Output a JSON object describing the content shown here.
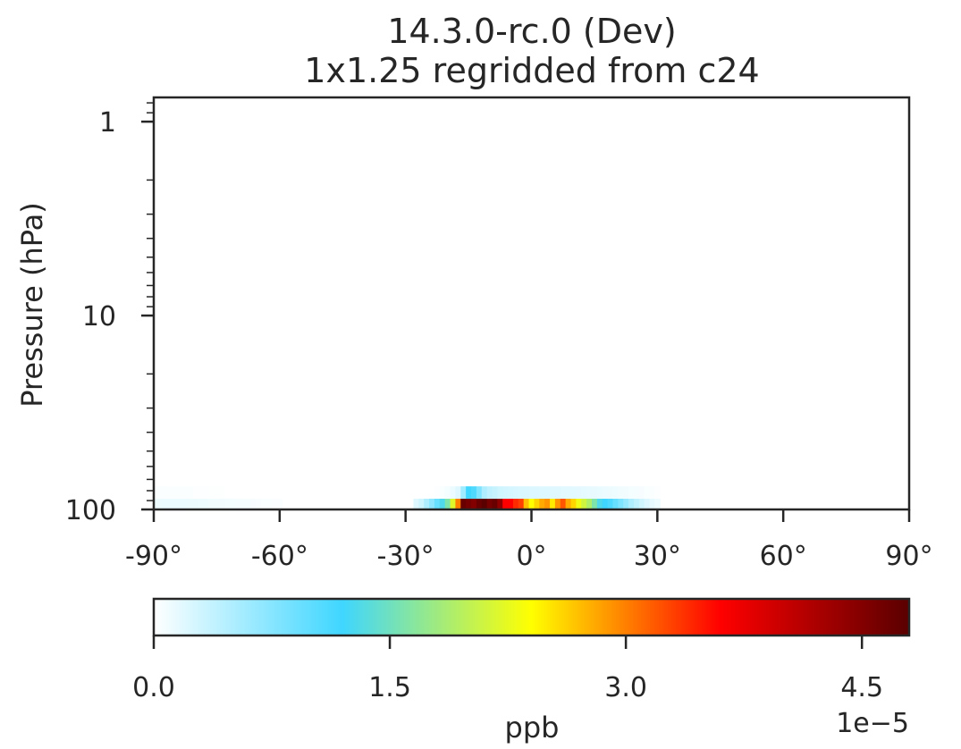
{
  "chart_data": {
    "type": "heatmap",
    "title": "14.3.0-rc.0 (Dev)",
    "subtitle": "1x1.25 regridded from c24",
    "xlabel": "",
    "ylabel": "Pressure (hPa)",
    "xlim": [
      -90,
      90
    ],
    "ylim": [
      100,
      0.75
    ],
    "yscale": "log",
    "x_ticks": [
      -90,
      -60,
      -30,
      0,
      30,
      60,
      90
    ],
    "x_tick_labels": [
      "-90°",
      "-60°",
      "-30°",
      "0°",
      "30°",
      "60°",
      "90°"
    ],
    "y_ticks": [
      1,
      10,
      100
    ],
    "y_tick_labels": [
      "1",
      "10",
      "100"
    ],
    "grid": false,
    "colormap": [
      "#ffffff",
      "#3fd6ff",
      "#ffff00",
      "#ff0000",
      "#5a0000"
    ],
    "colorbar": {
      "label": "ppb",
      "range": [
        0,
        4.8e-05
      ],
      "ticks": [
        0,
        1.5e-05,
        3e-05,
        4.5e-05
      ],
      "tick_labels": [
        "0.0",
        "1.5",
        "3.0",
        "4.5"
      ],
      "offset_text": "1e−5",
      "orientation": "horizontal",
      "placement": "bottom"
    },
    "levels": [
      {
        "p_top": 88,
        "p_bottom": 100,
        "lat": [
          -90,
          -88.75,
          -87.5,
          -86.25,
          -85,
          -83.75,
          -82.5,
          -81.25,
          -80,
          -78.75,
          -77.5,
          -76.25,
          -75,
          -73.75,
          -72.5,
          -71.25,
          -70,
          -68.75,
          -67.5,
          -66.25,
          -65,
          -63.75,
          -62.5,
          -61.25,
          -60
        ],
        "values": [
          1e-06,
          1.1e-06,
          1.2e-06,
          1.2e-06,
          1.2e-06,
          1.2e-06,
          1.2e-06,
          1.1e-06,
          1.1e-06,
          1e-06,
          1e-06,
          9e-07,
          8.5e-07,
          8e-07,
          7.5e-07,
          7e-07,
          6.5e-07,
          6e-07,
          5.5e-07,
          5e-07,
          4.5e-07,
          4e-07,
          3.5e-07,
          3e-07,
          2.5e-07
        ]
      },
      {
        "p_top": 88,
        "p_bottom": 100,
        "lat": [
          -27.5,
          -26.25,
          -25,
          -23.75,
          -22.5,
          -21.25,
          -20,
          -18.75,
          -17.5,
          -16.25,
          -15,
          -13.75,
          -12.5,
          -11.25,
          -10,
          -8.75,
          -7.5,
          -6.25,
          -5,
          -3.75,
          -2.5,
          -1.25,
          0,
          1.25,
          2.5,
          3.75,
          5,
          6.25,
          7.5,
          8.75,
          10,
          11.25,
          12.5,
          13.75,
          15,
          16.25,
          17.5,
          18.75,
          20,
          21.25,
          22.5,
          23.75,
          25,
          26.25,
          27.5,
          28.75,
          30
        ],
        "values": [
          2e-06,
          3e-06,
          5e-06,
          7e-06,
          9.5e-06,
          1.3e-05,
          1.6e-05,
          2.2e-05,
          3e-05,
          4.7e-05,
          4.6e-05,
          4.5e-05,
          4.7e-05,
          4.8e-05,
          4.6e-05,
          4.7e-05,
          4.4e-05,
          3.6e-05,
          3.6e-05,
          3.4e-05,
          3.3e-05,
          2.7e-05,
          2.4e-05,
          2.6e-05,
          2.8e-05,
          2.9e-05,
          2.5e-05,
          2.9e-05,
          3.2e-05,
          2.8e-05,
          2.6e-05,
          2.3e-05,
          2.1e-05,
          1.9e-05,
          1.6e-05,
          1.3e-05,
          1.2e-05,
          1.1e-05,
          9.5e-06,
          8e-06,
          6.5e-06,
          5e-06,
          4e-06,
          3e-06,
          2.2e-06,
          1.5e-06,
          1e-06
        ]
      },
      {
        "p_top": 76,
        "p_bottom": 88,
        "lat": [
          -90,
          -88.75,
          -87.5,
          -86.25,
          -85,
          -83.75,
          -82.5,
          -81.25,
          -80,
          -78.75,
          -77.5,
          -76.25,
          -75,
          -73.75
        ],
        "values": [
          3e-07,
          3e-07,
          3e-07,
          2.8e-07,
          2.6e-07,
          2.5e-07,
          2.3e-07,
          2.2e-07,
          2e-07,
          1.8e-07,
          1.6e-07,
          1.4e-07,
          1.2e-07,
          1e-07
        ]
      },
      {
        "p_top": 76,
        "p_bottom": 88,
        "lat": [
          -22.5,
          -21.25,
          -20,
          -18.75,
          -17.5,
          -16.25,
          -15,
          -13.75,
          -12.5,
          -11.25,
          -10,
          -8.75,
          -7.5,
          -6.25,
          -5,
          -3.75,
          -2.5,
          -1.25,
          0,
          1.25,
          2.5,
          3.75,
          5,
          6.25,
          7.5,
          8.75,
          10,
          11.25,
          12.5,
          13.75,
          15,
          16.25,
          17.5,
          18.75,
          20,
          21.25,
          22.5,
          23.75,
          25,
          26.25,
          27.5,
          28.75,
          30
        ],
        "values": [
          2e-07,
          4e-07,
          7e-07,
          1.2e-06,
          2e-06,
          6e-06,
          1.2e-05,
          1.1e-05,
          8e-06,
          5e-06,
          4e-06,
          3.5e-06,
          3e-06,
          2.8e-06,
          2.6e-06,
          2.5e-06,
          2.4e-06,
          2.3e-06,
          2.2e-06,
          2.2e-06,
          2.1e-06,
          2.1e-06,
          2e-06,
          2e-06,
          1.9e-06,
          1.9e-06,
          1.8e-06,
          1.7e-06,
          1.6e-06,
          1.5e-06,
          1.4e-06,
          1.3e-06,
          1.2e-06,
          1.1e-06,
          1e-06,
          9e-07,
          8e-07,
          7e-07,
          6e-07,
          5e-07,
          4e-07,
          3e-07,
          2e-07
        ]
      }
    ]
  }
}
